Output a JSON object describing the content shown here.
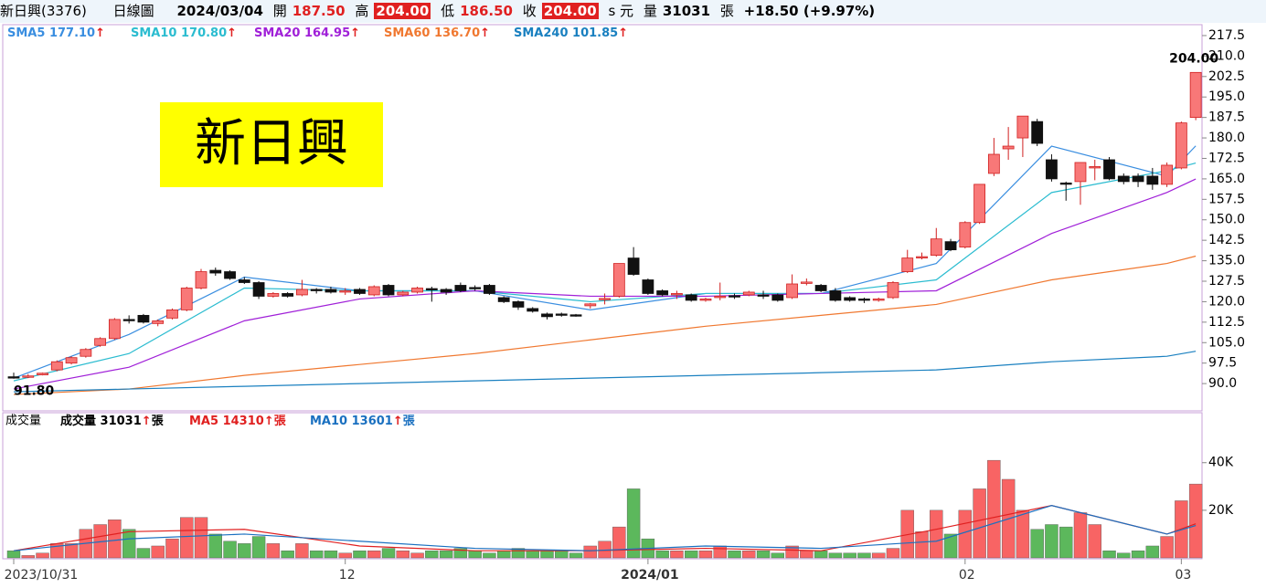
{
  "header": {
    "name": "新日興(3376)",
    "period": "日線圖",
    "date": "2024/03/04",
    "open_label": "開",
    "open": "187.50",
    "high_label": "高",
    "high": "204.00",
    "low_label": "低",
    "low": "186.50",
    "close_label": "收",
    "close": "204.00",
    "currency": "s 元",
    "volume_label": "量",
    "volume": "31031",
    "volume_unit": "張",
    "change": "+18.50 (+9.97%)"
  },
  "arrow": "↑",
  "chart_data": [
    {
      "type": "candlestick",
      "title": "新日興",
      "categories": [
        "2023/10/31",
        null,
        null,
        null,
        null,
        null,
        null,
        null,
        null,
        null,
        null,
        null,
        null,
        null,
        null,
        null,
        null,
        null,
        null,
        null,
        null,
        null,
        null,
        "12",
        null,
        null,
        null,
        null,
        null,
        null,
        null,
        null,
        null,
        null,
        null,
        null,
        null,
        null,
        null,
        null,
        null,
        null,
        null,
        null,
        "2024/01",
        null,
        null,
        null,
        null,
        null,
        null,
        null,
        null,
        null,
        null,
        null,
        null,
        null,
        null,
        null,
        null,
        null,
        null,
        null,
        null,
        null,
        "02",
        null,
        null,
        null,
        null,
        null,
        null,
        null,
        null,
        null,
        null,
        null,
        null,
        null,
        null,
        "03",
        null
      ],
      "open": [
        92.5,
        92.5,
        93.2,
        95,
        97.5,
        100,
        104,
        106.5,
        113.5,
        115,
        112,
        114,
        117,
        125,
        131.5,
        131,
        128,
        127,
        122,
        123,
        122.5,
        124.5,
        124.5,
        123.5,
        124.5,
        122.5,
        126,
        122.5,
        123.5,
        124.8,
        124.5,
        126,
        125.2,
        126,
        121.5,
        120,
        117.5,
        115.5,
        115.5,
        115.2,
        118.5,
        121,
        122,
        136,
        128,
        124,
        122.5,
        122.5,
        120.5,
        121.5,
        122.2,
        122.5,
        122.5,
        122.5,
        121.5,
        127,
        126,
        124,
        121.5,
        121,
        120.5,
        121.5,
        131,
        136.2,
        137,
        142,
        140,
        149,
        167,
        176,
        180,
        186,
        172,
        163.5,
        164,
        169,
        172,
        166,
        166,
        166,
        163,
        169,
        187.5
      ],
      "high": [
        94,
        93.5,
        94,
        98.5,
        100,
        103,
        107,
        114,
        115,
        115.5,
        113.5,
        117.5,
        125.5,
        132,
        132.5,
        131.5,
        129,
        127.5,
        123.5,
        123.5,
        128,
        125,
        125.5,
        125,
        125,
        126,
        126.5,
        124,
        125.5,
        125.5,
        125,
        127,
        126,
        126.5,
        122,
        120.5,
        118,
        116,
        116,
        115.5,
        119.5,
        123,
        134,
        140,
        128.5,
        124.5,
        124,
        123,
        121.5,
        127,
        123,
        124,
        124,
        123,
        130,
        128.5,
        126.5,
        125,
        122,
        121.5,
        121.5,
        127.5,
        139,
        138,
        147,
        143,
        149.5,
        163,
        180,
        184,
        188,
        187,
        174,
        164,
        171,
        172,
        173,
        167,
        167,
        169,
        171,
        186,
        204
      ],
      "low": [
        91.8,
        92,
        93,
        94.5,
        97,
        99.5,
        103.5,
        106,
        112,
        112,
        111,
        113.5,
        116.5,
        124.5,
        129.5,
        128,
        126.5,
        121,
        121.5,
        121.5,
        122,
        123,
        123,
        122.5,
        122.5,
        122,
        122,
        122,
        123,
        120,
        122.5,
        123.5,
        124,
        122.5,
        119.5,
        117,
        116,
        113.5,
        114.5,
        114.5,
        117.5,
        119,
        121.5,
        129.5,
        122.5,
        122,
        121,
        120,
        120,
        120.5,
        121,
        122,
        121,
        120,
        121,
        126,
        123.5,
        120,
        120,
        119.5,
        120,
        121,
        130.5,
        135.5,
        136.5,
        138.5,
        139.5,
        148.5,
        166,
        172,
        173,
        177,
        164,
        157,
        155.5,
        164.5,
        164.5,
        163,
        162,
        161,
        162,
        168.5,
        186.5
      ],
      "close": [
        92.5,
        92.8,
        93.8,
        98,
        99.5,
        102.5,
        106.5,
        113.5,
        113,
        112.5,
        113,
        117,
        125,
        131,
        130.5,
        128.5,
        127,
        122,
        123,
        122,
        124.5,
        124,
        123.5,
        124,
        123,
        125.5,
        122.5,
        123.5,
        125,
        124.5,
        123.5,
        124,
        125,
        123,
        120,
        118,
        116.5,
        114.5,
        115,
        115,
        119.2,
        121.2,
        134,
        130,
        123,
        122.5,
        123,
        120.5,
        121,
        122,
        122,
        123.5,
        122.2,
        120.5,
        126.5,
        127.2,
        124,
        120.5,
        120.5,
        120.5,
        121,
        127,
        136,
        136.5,
        143,
        139,
        149,
        163,
        174,
        177,
        188,
        178,
        165,
        163,
        171,
        169.5,
        165,
        164,
        164,
        163,
        170,
        185.5,
        204
      ],
      "up_color": "#f87878",
      "down_color": "#111111",
      "ylim": [
        80,
        221.5
      ],
      "yticks": [
        {
          "value": 90,
          "label": "90.0"
        },
        97.5,
        {
          "value": 105,
          "label": "105.0"
        },
        112.5,
        {
          "value": 120,
          "label": "120.0"
        },
        127.5,
        {
          "value": 135,
          "label": "135.0"
        },
        142.5,
        {
          "value": 150,
          "label": "150.0"
        },
        157.5,
        {
          "value": 165,
          "label": "165.0"
        },
        172.5,
        {
          "value": 180,
          "label": "180.0"
        },
        187.5,
        {
          "value": 195,
          "label": "195.0"
        },
        202.5,
        {
          "value": 210,
          "label": "210.0"
        },
        217.5
      ],
      "annotations": [
        {
          "text": "204.00",
          "index": 82,
          "value": 204
        },
        {
          "text": "91.80",
          "index": 0,
          "value": 91.8
        }
      ],
      "series": [
        {
          "name": "SMA5",
          "last": "177.10",
          "color": "#3a8ee0",
          "x": [
            0,
            8,
            16,
            24,
            32,
            40,
            48,
            56,
            64,
            72,
            80,
            82
          ],
          "values": [
            92,
            108,
            129,
            124,
            124,
            117,
            123,
            123,
            134,
            177,
            166,
            177.1
          ]
        },
        {
          "name": "SMA10",
          "last": "170.80",
          "color": "#2bbcd0",
          "x": [
            0,
            8,
            16,
            24,
            32,
            40,
            48,
            56,
            64,
            72,
            80,
            82
          ],
          "values": [
            91,
            101,
            125,
            124,
            124,
            120,
            123,
            123,
            128,
            160,
            168,
            170.8
          ]
        },
        {
          "name": "SMA20",
          "last": "164.95",
          "color": "#a020d8",
          "x": [
            0,
            8,
            16,
            24,
            32,
            40,
            48,
            56,
            64,
            72,
            80,
            82
          ],
          "values": [
            88,
            96,
            113,
            121,
            124,
            122,
            122,
            123,
            124,
            145,
            160,
            164.95
          ]
        },
        {
          "name": "SMA60",
          "last": "136.70",
          "color": "#f07830",
          "x": [
            0,
            8,
            16,
            24,
            32,
            40,
            48,
            56,
            64,
            72,
            80,
            82
          ],
          "values": [
            86,
            88,
            93,
            97,
            101,
            106,
            111,
            115,
            119,
            128,
            134,
            136.7
          ]
        },
        {
          "name": "SMA240",
          "last": "101.85",
          "color": "#1a80c0",
          "x": [
            0,
            8,
            16,
            24,
            32,
            40,
            48,
            56,
            64,
            72,
            80,
            82
          ],
          "values": [
            87,
            88,
            89,
            90,
            91,
            92,
            93,
            94,
            95,
            98,
            100,
            101.85
          ]
        }
      ]
    },
    {
      "type": "volume",
      "title": "成交量",
      "legend_name": "成交量",
      "legend_value": "31031",
      "unit": "張",
      "values": [
        3000,
        1000,
        2000,
        6000,
        6000,
        12000,
        14000,
        16000,
        12000,
        4000,
        5000,
        8000,
        17000,
        17000,
        10000,
        7000,
        6000,
        9000,
        6000,
        3000,
        6000,
        3000,
        3000,
        2000,
        3000,
        3000,
        4000,
        3000,
        2000,
        3000,
        3000,
        4000,
        3000,
        2000,
        3000,
        4000,
        3000,
        3000,
        3000,
        2000,
        5000,
        7000,
        13000,
        29000,
        8000,
        3000,
        3000,
        3000,
        3000,
        5000,
        3000,
        3000,
        3000,
        2000,
        5000,
        3000,
        3000,
        2000,
        2000,
        2000,
        2000,
        4000,
        20000,
        11000,
        20000,
        10000,
        20000,
        29000,
        41000,
        33000,
        20000,
        12000,
        14000,
        13000,
        19000,
        14000,
        3000,
        2000,
        3000,
        5000,
        9000,
        24000,
        31031
      ],
      "up_color": "#f86464",
      "down_color": "#5cb85c",
      "ylim": [
        0,
        61000
      ],
      "yticks": [
        {
          "value": 20000,
          "label": "20K"
        },
        {
          "value": 40000,
          "label": "40K"
        }
      ],
      "series": [
        {
          "name": "MA5",
          "last": "14310",
          "color": "#e02020",
          "x": [
            0,
            8,
            16,
            24,
            32,
            40,
            48,
            56,
            64,
            72,
            80,
            82
          ],
          "values": [
            3000,
            11000,
            12000,
            5000,
            3000,
            3000,
            4000,
            3000,
            12000,
            22000,
            10000,
            14310
          ]
        },
        {
          "name": "MA10",
          "last": "13601",
          "color": "#1a70c0",
          "x": [
            0,
            8,
            16,
            24,
            32,
            40,
            48,
            56,
            64,
            72,
            80,
            82
          ],
          "values": [
            3000,
            8000,
            10000,
            7000,
            4000,
            3000,
            5000,
            4000,
            7000,
            22000,
            10000,
            13601
          ]
        }
      ]
    }
  ]
}
